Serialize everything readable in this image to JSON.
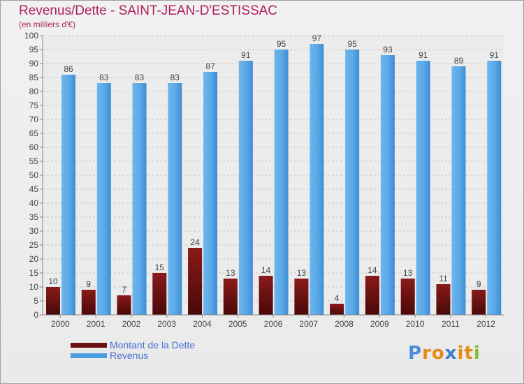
{
  "title": "Revenus/Dette - SAINT-JEAN-D'ESTISSAC",
  "subtitle": "(en milliers d'€)",
  "logo_text": "Proxiti",
  "colors": {
    "dette": "#7a1414",
    "revenus": "#5aaae8",
    "title": "#b01e5c",
    "legend_text": "#4a6fd3"
  },
  "legend": [
    {
      "label": "Montant de la Dette",
      "color": "#7a1414"
    },
    {
      "label": "Revenus",
      "color": "#5aaae8"
    }
  ],
  "chart_data": {
    "type": "bar",
    "title": "Revenus/Dette - SAINT-JEAN-D'ESTISSAC",
    "subtitle": "(en milliers d'€)",
    "categories": [
      "2000",
      "2001",
      "2002",
      "2003",
      "2004",
      "2005",
      "2006",
      "2007",
      "2008",
      "2009",
      "2010",
      "2011",
      "2012"
    ],
    "series": [
      {
        "name": "Montant de la Dette",
        "values": [
          10,
          9,
          7,
          15,
          24,
          13,
          14,
          13,
          4,
          14,
          13,
          11,
          9
        ]
      },
      {
        "name": "Revenus",
        "values": [
          86,
          83,
          83,
          83,
          87,
          91,
          95,
          97,
          95,
          93,
          91,
          89,
          91
        ]
      }
    ],
    "ylim": [
      0,
      100
    ],
    "ytick_step": 5,
    "grid": true,
    "legend_position": "bottom-left"
  }
}
